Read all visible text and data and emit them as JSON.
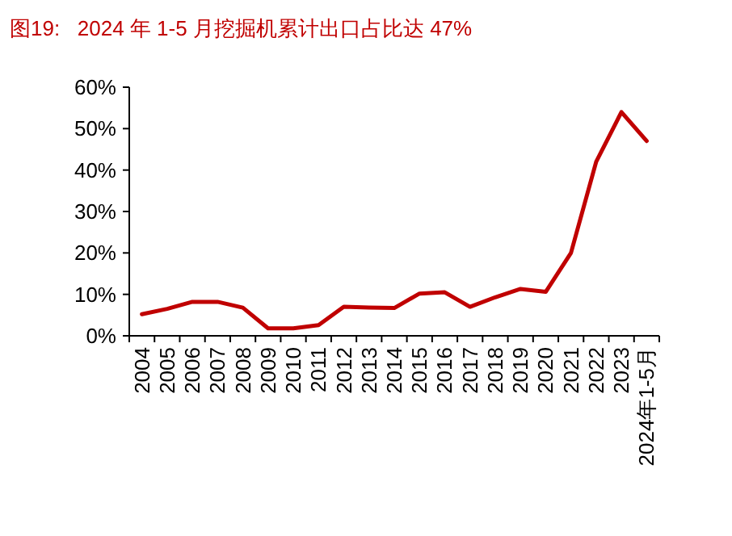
{
  "chart_data": {
    "type": "line",
    "title": "图19:   2024 年 1-5 月挖掘机累计出口占比达 47%",
    "categories": [
      "2004",
      "2005",
      "2006",
      "2007",
      "2008",
      "2009",
      "2010",
      "2011",
      "2012",
      "2013",
      "2014",
      "2015",
      "2016",
      "2017",
      "2018",
      "2019",
      "2020",
      "2021",
      "2022",
      "2023",
      "2024年1-5月"
    ],
    "series": [
      {
        "color": "#c00000",
        "values": [
          5.2,
          6.5,
          8.2,
          8.2,
          6.8,
          1.8,
          1.8,
          2.6,
          7.0,
          6.8,
          6.7,
          10.2,
          10.5,
          7.0,
          9.3,
          11.3,
          10.6,
          20,
          42,
          54,
          47
        ]
      }
    ],
    "ylim": [
      0,
      60
    ],
    "yticks": [
      {
        "value": 0,
        "label": "0%"
      },
      {
        "value": 10,
        "label": "10%"
      },
      {
        "value": 20,
        "label": "20%"
      },
      {
        "value": 30,
        "label": "30%"
      },
      {
        "value": 40,
        "label": "40%"
      },
      {
        "value": 50,
        "label": "50%"
      },
      {
        "value": 60,
        "label": "60%"
      }
    ],
    "marker": "none",
    "line_style": "solid"
  }
}
